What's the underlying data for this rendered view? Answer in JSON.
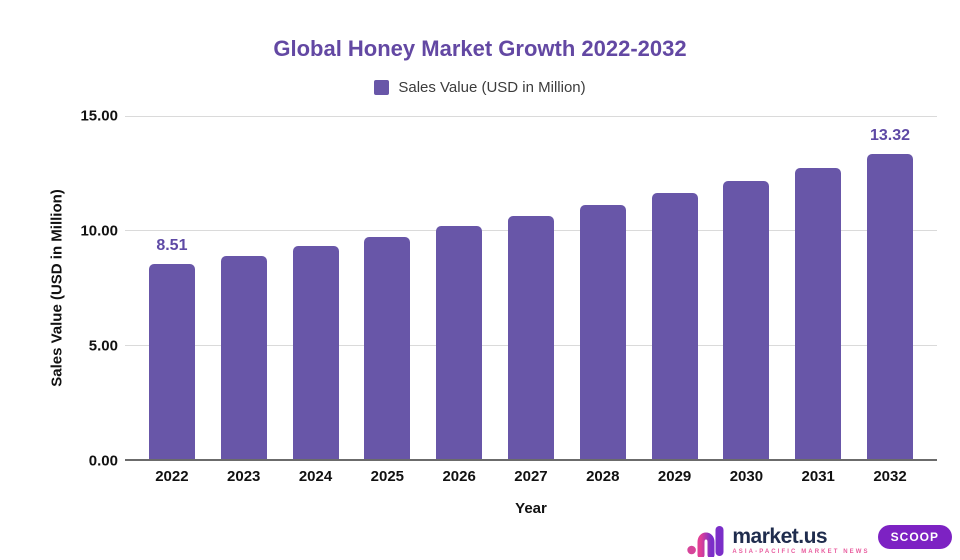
{
  "chart_data": {
    "type": "bar",
    "title": "Global Honey Market Growth 2022-2032",
    "legend_label": "Sales Value (USD in Million)",
    "legend_position": "top",
    "categories": [
      "2022",
      "2023",
      "2024",
      "2025",
      "2026",
      "2027",
      "2028",
      "2029",
      "2030",
      "2031",
      "2032"
    ],
    "values": [
      8.51,
      8.9,
      9.31,
      9.73,
      10.18,
      10.64,
      11.13,
      11.64,
      12.17,
      12.72,
      13.32
    ],
    "value_labels": {
      "0": "8.51",
      "10": "13.32"
    },
    "xlabel": "Year",
    "ylabel": "Sales Value (USD in Million)",
    "ylim": [
      0,
      15
    ],
    "yticks": [
      {
        "label": "15.00",
        "value": 15
      },
      {
        "label": "10.00",
        "value": 10
      },
      {
        "label": "5.00",
        "value": 5
      },
      {
        "label": "0.00",
        "value": 0
      }
    ],
    "grid": true,
    "bar_color": "#6856A8",
    "title_color": "#6348A3",
    "value_label_color": "#5E49A5"
  },
  "footer": {
    "brand": "market.us",
    "tagline": "ASIA-PACIFIC MARKET NEWS",
    "badge": "SCOOP"
  }
}
